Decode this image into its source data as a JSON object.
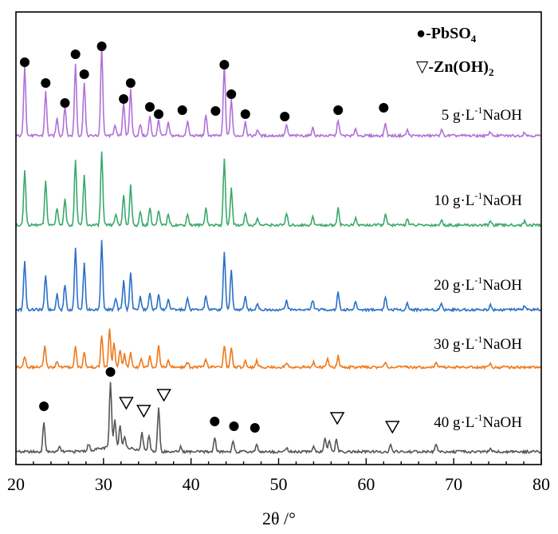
{
  "chart_data": {
    "type": "line",
    "xlabel": "2θ /°",
    "ylabel": "",
    "xlim": [
      20,
      80
    ],
    "x_ticks": [
      "20",
      "30",
      "40",
      "50",
      "60",
      "70",
      "80"
    ],
    "grid": false,
    "legend": {
      "placement": "top-right",
      "entries": [
        {
          "symbol": "●",
          "name": "-PbSO",
          "sub": "4",
          "tail": ""
        },
        {
          "symbol": "▽",
          "name": "-Zn(OH)",
          "sub": "2",
          "tail": ""
        }
      ]
    },
    "series": [
      {
        "name": "5 g·L⁻¹NaOH",
        "label_parts": {
          "pre": "5 g·L",
          "sup": "-1",
          "post": "NaOH"
        },
        "color": "#b070d8",
        "peaks": [
          [
            21.0,
            88
          ],
          [
            23.4,
            55
          ],
          [
            24.7,
            22
          ],
          [
            25.6,
            38
          ],
          [
            26.8,
            90
          ],
          [
            27.8,
            68
          ],
          [
            29.8,
            112
          ],
          [
            31.3,
            14
          ],
          [
            32.3,
            42
          ],
          [
            33.1,
            58
          ],
          [
            34.2,
            14
          ],
          [
            35.3,
            24
          ],
          [
            36.3,
            20
          ],
          [
            37.4,
            16
          ],
          [
            39.6,
            18
          ],
          [
            41.7,
            25
          ],
          [
            43.8,
            88
          ],
          [
            44.6,
            46
          ],
          [
            46.2,
            18
          ],
          [
            47.6,
            8
          ],
          [
            50.9,
            13
          ],
          [
            53.9,
            10
          ],
          [
            56.8,
            20
          ],
          [
            58.8,
            8
          ],
          [
            62.2,
            16
          ],
          [
            64.7,
            7
          ],
          [
            68.6,
            7
          ],
          [
            74.2,
            5
          ],
          [
            78.1,
            5
          ]
        ],
        "peak_markers": [
          {
            "x": 21.0,
            "symbol": "●"
          },
          {
            "x": 23.4,
            "symbol": "●"
          },
          {
            "x": 25.6,
            "symbol": "●"
          },
          {
            "x": 26.8,
            "symbol": "●"
          },
          {
            "x": 27.8,
            "symbol": "●"
          },
          {
            "x": 29.8,
            "symbol": "●"
          },
          {
            "x": 32.3,
            "symbol": "●"
          },
          {
            "x": 33.1,
            "symbol": "●"
          },
          {
            "x": 35.3,
            "symbol": "●"
          },
          {
            "x": 36.3,
            "symbol": "●"
          },
          {
            "x": 39.0,
            "symbol": "●"
          },
          {
            "x": 42.8,
            "symbol": "●"
          },
          {
            "x": 43.8,
            "symbol": "●"
          },
          {
            "x": 44.6,
            "symbol": "●"
          },
          {
            "x": 46.2,
            "symbol": "●"
          },
          {
            "x": 50.7,
            "symbol": "●"
          },
          {
            "x": 56.8,
            "symbol": "●"
          },
          {
            "x": 62.0,
            "symbol": "●"
          }
        ]
      },
      {
        "name": "10 g·L⁻¹NaOH",
        "label_parts": {
          "pre": "10 g·L",
          "sup": "-1",
          "post": "NaOH"
        },
        "color": "#3aa86a",
        "peaks": [
          [
            21.0,
            70
          ],
          [
            23.4,
            55
          ],
          [
            24.7,
            22
          ],
          [
            25.6,
            34
          ],
          [
            26.8,
            82
          ],
          [
            27.8,
            62
          ],
          [
            29.8,
            92
          ],
          [
            31.4,
            14
          ],
          [
            32.3,
            38
          ],
          [
            33.1,
            50
          ],
          [
            34.2,
            16
          ],
          [
            35.3,
            22
          ],
          [
            36.3,
            18
          ],
          [
            37.4,
            14
          ],
          [
            39.6,
            14
          ],
          [
            41.7,
            22
          ],
          [
            43.8,
            82
          ],
          [
            44.6,
            46
          ],
          [
            46.2,
            16
          ],
          [
            47.6,
            8
          ],
          [
            50.9,
            14
          ],
          [
            53.9,
            10
          ],
          [
            56.8,
            22
          ],
          [
            58.8,
            8
          ],
          [
            62.2,
            14
          ],
          [
            64.7,
            8
          ],
          [
            68.6,
            6
          ],
          [
            74.2,
            5
          ],
          [
            78.1,
            5
          ]
        ],
        "peak_markers": []
      },
      {
        "name": "20 g·L⁻¹NaOH",
        "label_parts": {
          "pre": "20 g·L",
          "sup": "-1",
          "post": "NaOH"
        },
        "color": "#2a70c8",
        "peaks": [
          [
            21.0,
            62
          ],
          [
            23.4,
            44
          ],
          [
            24.7,
            20
          ],
          [
            25.6,
            32
          ],
          [
            26.8,
            78
          ],
          [
            27.8,
            58
          ],
          [
            29.8,
            86
          ],
          [
            31.4,
            14
          ],
          [
            32.3,
            36
          ],
          [
            33.1,
            48
          ],
          [
            34.2,
            16
          ],
          [
            35.3,
            22
          ],
          [
            36.3,
            20
          ],
          [
            37.4,
            14
          ],
          [
            39.6,
            14
          ],
          [
            41.7,
            18
          ],
          [
            43.8,
            72
          ],
          [
            44.6,
            50
          ],
          [
            46.2,
            16
          ],
          [
            47.6,
            8
          ],
          [
            50.9,
            12
          ],
          [
            53.9,
            12
          ],
          [
            56.8,
            22
          ],
          [
            58.8,
            10
          ],
          [
            62.2,
            16
          ],
          [
            64.7,
            8
          ],
          [
            68.6,
            8
          ],
          [
            74.2,
            6
          ],
          [
            78.1,
            5
          ]
        ],
        "peak_markers": []
      },
      {
        "name": "30 g·L⁻¹NaOH",
        "label_parts": {
          "pre": "30 g·L",
          "sup": "-1",
          "post": "NaOH"
        },
        "color": "#f07818",
        "peaks": [
          [
            21.0,
            14
          ],
          [
            23.3,
            26
          ],
          [
            24.7,
            8
          ],
          [
            26.8,
            26
          ],
          [
            27.8,
            18
          ],
          [
            29.8,
            40
          ],
          [
            30.7,
            48
          ],
          [
            31.2,
            30
          ],
          [
            31.9,
            22
          ],
          [
            32.4,
            16
          ],
          [
            33.1,
            18
          ],
          [
            34.3,
            12
          ],
          [
            35.3,
            14
          ],
          [
            36.3,
            28
          ],
          [
            37.4,
            8
          ],
          [
            39.6,
            6
          ],
          [
            41.7,
            10
          ],
          [
            43.8,
            28
          ],
          [
            44.6,
            24
          ],
          [
            46.2,
            8
          ],
          [
            47.5,
            8
          ],
          [
            50.9,
            6
          ],
          [
            54.0,
            6
          ],
          [
            55.6,
            10
          ],
          [
            56.8,
            14
          ],
          [
            62.2,
            6
          ],
          [
            68.0,
            6
          ],
          [
            74.2,
            4
          ]
        ],
        "peak_markers": []
      },
      {
        "name": "40 g·L⁻¹NaOH",
        "label_parts": {
          "pre": "40 g·L",
          "sup": "-1",
          "post": "NaOH"
        },
        "color": "#555555",
        "peaks": [
          [
            23.2,
            38
          ],
          [
            25.0,
            6
          ],
          [
            28.3,
            8
          ],
          [
            30.8,
            82
          ],
          [
            31.3,
            36
          ],
          [
            31.9,
            28
          ],
          [
            32.4,
            14
          ],
          [
            34.4,
            22
          ],
          [
            35.2,
            20
          ],
          [
            36.3,
            56
          ],
          [
            38.8,
            6
          ],
          [
            42.7,
            18
          ],
          [
            44.8,
            14
          ],
          [
            47.5,
            10
          ],
          [
            50.9,
            6
          ],
          [
            54.0,
            8
          ],
          [
            55.3,
            18
          ],
          [
            55.8,
            14
          ],
          [
            56.6,
            16
          ],
          [
            62.8,
            8
          ],
          [
            68.0,
            10
          ],
          [
            74.2,
            5
          ]
        ],
        "peak_markers": [
          {
            "x": 23.2,
            "symbol": "●"
          },
          {
            "x": 30.8,
            "symbol": "●"
          },
          {
            "x": 32.6,
            "symbol": "▽"
          },
          {
            "x": 34.6,
            "symbol": "▽"
          },
          {
            "x": 36.9,
            "symbol": "▽"
          },
          {
            "x": 42.7,
            "symbol": "●"
          },
          {
            "x": 44.9,
            "symbol": "●"
          },
          {
            "x": 47.3,
            "symbol": "●"
          },
          {
            "x": 56.7,
            "symbol": "▽"
          },
          {
            "x": 63.0,
            "symbol": "▽"
          }
        ]
      }
    ]
  }
}
